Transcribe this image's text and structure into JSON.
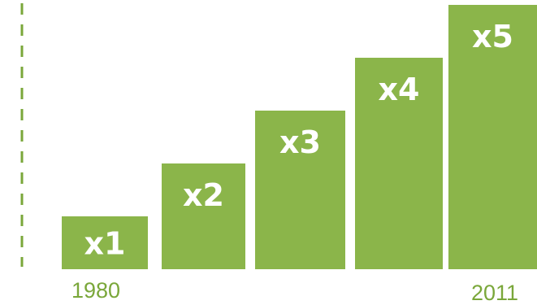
{
  "colors": {
    "bar": "#8bb54a",
    "axis": "#7aa73a",
    "label": "#ffffff"
  },
  "chart_data": {
    "type": "bar",
    "categories": [
      "",
      "",
      "",
      "",
      ""
    ],
    "values": [
      1,
      2,
      3,
      4,
      5
    ],
    "data_labels": [
      "x1",
      "x2",
      "x3",
      "x4",
      "x5"
    ],
    "x_tick_labels": {
      "start": "1980",
      "end": "2011"
    },
    "title": "",
    "xlabel": "",
    "ylabel": "",
    "ylim": [
      0,
      5
    ],
    "grid": false,
    "legend": "none",
    "axis_style": "dashed-left"
  }
}
